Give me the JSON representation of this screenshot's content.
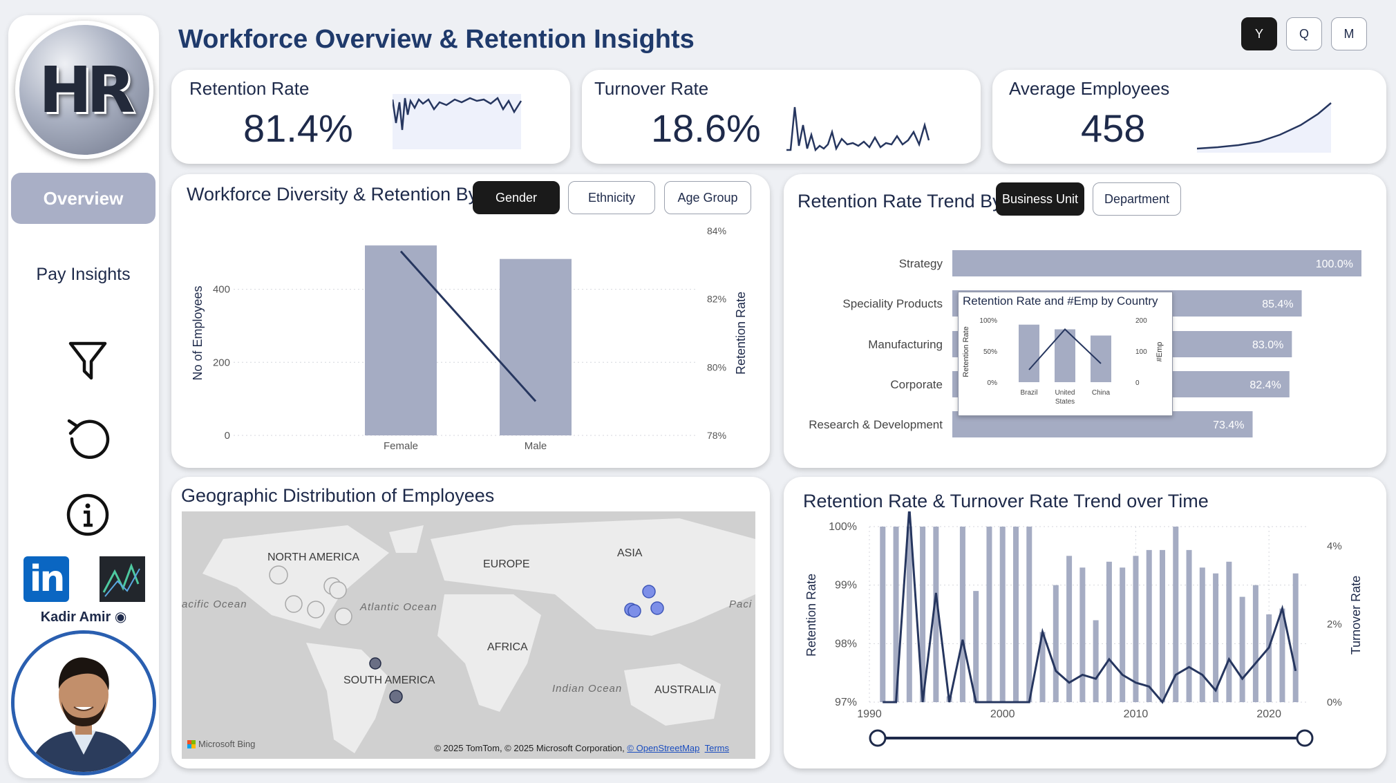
{
  "sidebar": {
    "logo_text": "HR",
    "nav": [
      {
        "label": "Overview",
        "active": true
      },
      {
        "label": "Pay Insights",
        "active": false
      }
    ],
    "icons": [
      "filter-icon",
      "reset-icon",
      "info-icon"
    ],
    "social": [
      "linkedin-icon",
      "analytics-icon"
    ],
    "author": "Kadir Amir"
  },
  "header": {
    "title": "Workforce Overview & Retention Insights",
    "periods": [
      {
        "label": "Y",
        "active": true
      },
      {
        "label": "Q",
        "active": false
      },
      {
        "label": "M",
        "active": false
      }
    ]
  },
  "kpis": [
    {
      "label": "Retention Rate",
      "value": "81.4%"
    },
    {
      "label": "Turnover Rate",
      "value": "18.6%"
    },
    {
      "label": "Average Employees",
      "value": "458"
    }
  ],
  "colors": {
    "bar": "#a5acc3",
    "line": "#26365f",
    "accent": "#1f3a6b"
  },
  "diversity": {
    "title": "Workforce Diversity & Retention By",
    "toggles": [
      {
        "label": "Gender",
        "active": true
      },
      {
        "label": "Ethnicity",
        "active": false
      },
      {
        "label": "Age Group",
        "active": false
      }
    ]
  },
  "trend_by": {
    "title": "Retention Rate Trend By",
    "toggles": [
      {
        "label": "Business Unit",
        "active": true
      },
      {
        "label": "Department",
        "active": false
      }
    ],
    "tooltip_title": "Retention Rate and #Emp by Country"
  },
  "geo": {
    "title": "Geographic Distribution of Employees",
    "continents": [
      "NORTH AMERICA",
      "EUROPE",
      "ASIA",
      "AFRICA",
      "SOUTH AMERICA",
      "AUSTRALIA"
    ],
    "oceans": [
      "acific Ocean",
      "Atlantic Ocean",
      "Indian Ocean",
      "Paci"
    ],
    "brand": "Microsoft Bing",
    "credit_prefix": "© 2025 TomTom, © 2025 Microsoft Corporation,",
    "credit_link": "© OpenStreetMap",
    "terms": "Terms"
  },
  "time_trend": {
    "title": "Retention Rate & Turnover Rate Trend over Time"
  },
  "chart_data": [
    {
      "type": "bar",
      "id": "gender",
      "categories": [
        "Female",
        "Male"
      ],
      "series": [
        {
          "name": "No of Employees",
          "values": [
            520,
            483
          ],
          "axis": "left"
        },
        {
          "name": "Retention Rate",
          "values": [
            83.4,
            79.0
          ],
          "axis": "right",
          "kind": "line"
        }
      ],
      "ylabel": "No of Employees",
      "y2label": "Retention Rate",
      "ylim": [
        0,
        560
      ],
      "y2lim": [
        78,
        84
      ],
      "yticks": [
        "0",
        "200",
        "400"
      ],
      "y2ticks": [
        "78%",
        "80%",
        "82%",
        "84%"
      ]
    },
    {
      "type": "bar",
      "id": "business_unit",
      "orientation": "horizontal",
      "categories": [
        "Strategy",
        "Speciality Products",
        "Manufacturing",
        "Corporate",
        "Research & Development"
      ],
      "values": [
        100.0,
        85.4,
        83.0,
        82.4,
        73.4
      ],
      "labels": [
        "100.0%",
        "85.4%",
        "83.0%",
        "82.4%",
        "73.4%"
      ],
      "xlim": [
        0,
        100
      ]
    },
    {
      "type": "bar",
      "id": "country_tooltip",
      "categories": [
        "Brazil",
        "United States",
        "China"
      ],
      "series": [
        {
          "name": "#Emp",
          "values": [
            185,
            170,
            150
          ],
          "axis": "right"
        },
        {
          "name": "Retention Rate",
          "values": [
            20,
            85,
            30
          ],
          "axis": "left",
          "kind": "line"
        }
      ],
      "ylabel": "Retention Rate",
      "y2label": "#Emp",
      "yticks": [
        "0%",
        "50%",
        "100%"
      ],
      "y2ticks": [
        "0",
        "100",
        "200"
      ],
      "ylim": [
        0,
        100
      ],
      "y2lim": [
        0,
        200
      ]
    },
    {
      "type": "bar",
      "id": "time_trend",
      "x": [
        1991,
        1992,
        1993,
        1994,
        1995,
        1996,
        1997,
        1998,
        1999,
        2000,
        2001,
        2002,
        2003,
        2004,
        2005,
        2006,
        2007,
        2008,
        2009,
        2010,
        2011,
        2012,
        2013,
        2014,
        2015,
        2016,
        2017,
        2018,
        2019,
        2020,
        2021,
        2022
      ],
      "series": [
        {
          "name": "Retention Rate",
          "axis": "left",
          "values": [
            100,
            100,
            100,
            100,
            100,
            97.1,
            100,
            98.9,
            100,
            100,
            100,
            100,
            98.2,
            99.0,
            99.5,
            99.3,
            98.4,
            99.4,
            99.3,
            99.5,
            99.6,
            99.6,
            100,
            99.6,
            99.3,
            99.2,
            99.4,
            98.8,
            99.0,
            98.5,
            98.6,
            99.2
          ]
        },
        {
          "name": "Turnover Rate",
          "axis": "right",
          "kind": "line",
          "values": [
            0,
            0,
            5.0,
            0,
            2.8,
            0,
            1.6,
            0,
            0,
            0,
            0,
            0,
            1.8,
            0.8,
            0.5,
            0.7,
            0.6,
            1.1,
            0.7,
            0.5,
            0.4,
            0,
            0.7,
            0.9,
            0.7,
            0.3,
            1.1,
            0.6,
            1.0,
            1.4,
            2.4,
            0.8
          ]
        }
      ],
      "ylabel": "Retention Rate",
      "y2label": "Turnover Rate",
      "yticks": [
        "97%",
        "98%",
        "99%",
        "100%"
      ],
      "y2ticks": [
        "0%",
        "2%",
        "4%"
      ],
      "xticks": [
        "1990",
        "2000",
        "2010",
        "2020"
      ],
      "ylim": [
        97,
        100
      ],
      "y2lim": [
        0,
        4.5
      ],
      "xlim": [
        1990,
        2023
      ]
    }
  ]
}
